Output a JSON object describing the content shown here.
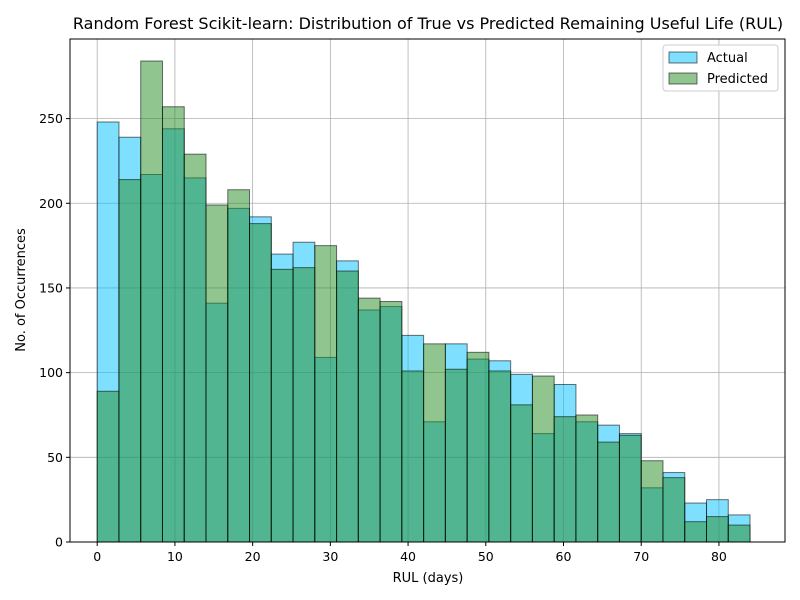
{
  "chart_data": {
    "type": "bar",
    "title": "Random Forest Scikit-learn: Distribution of True vs Predicted Remaining Useful Life (RUL)",
    "xlabel": "RUL (days)",
    "ylabel": "No. of Occurrences",
    "xlim": [
      -3.5,
      88.5
    ],
    "ylim": [
      0,
      297
    ],
    "xticks": [
      0,
      10,
      20,
      30,
      40,
      50,
      60,
      70,
      80
    ],
    "yticks": [
      0,
      50,
      100,
      150,
      200,
      250
    ],
    "grid": true,
    "legend_position": "top-right",
    "bin_edges": [
      0,
      2.8,
      5.6,
      8.4,
      11.2,
      14,
      16.8,
      19.6,
      22.4,
      25.2,
      28,
      30.8,
      33.6,
      36.4,
      39.2,
      42,
      44.8,
      47.6,
      50.4,
      53.2,
      56,
      58.8,
      61.6,
      64.4,
      67.2,
      70,
      72.8,
      75.6,
      78.4,
      81.2,
      84
    ],
    "series": [
      {
        "name": "Actual",
        "color": "#00bfff",
        "values": [
          248,
          239,
          217,
          244,
          215,
          141,
          197,
          192,
          170,
          177,
          109,
          166,
          137,
          139,
          122,
          71,
          117,
          108,
          107,
          99,
          64,
          93,
          71,
          69,
          64,
          32,
          41,
          23,
          25,
          16
        ]
      },
      {
        "name": "Predicted",
        "color": "#228b22",
        "values": [
          89,
          214,
          284,
          257,
          229,
          199,
          208,
          188,
          161,
          162,
          175,
          160,
          144,
          142,
          101,
          117,
          102,
          112,
          101,
          81,
          98,
          74,
          75,
          59,
          63,
          48,
          38,
          12,
          15,
          10
        ]
      }
    ]
  }
}
